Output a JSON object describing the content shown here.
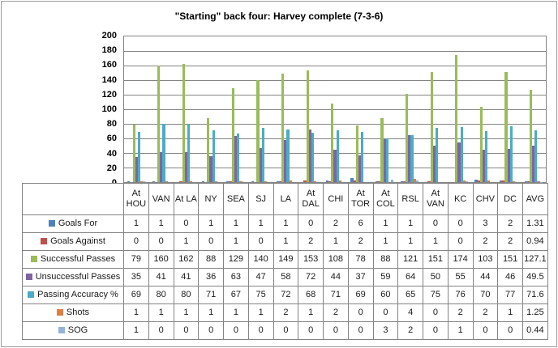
{
  "chart_data": {
    "type": "bar",
    "title": "\"Starting\" back four: Harvey complete (7-3-6)",
    "xlabel": "",
    "ylabel": "",
    "ylim": [
      0,
      200
    ],
    "ytick_step": 20,
    "yticks": [
      "200",
      "180",
      "160",
      "140",
      "120",
      "100",
      "80",
      "60",
      "40",
      "20",
      "0"
    ],
    "grid": true,
    "legend_position": "data-table-left-column",
    "categories": [
      "At HOU",
      "VAN",
      "At LA",
      "NY",
      "SEA",
      "SJ",
      "LA",
      "At DAL",
      "CHI",
      "At TOR",
      "At COL",
      "RSL",
      "At VAN",
      "KC",
      "CHV",
      "DC",
      "AVG"
    ],
    "series": [
      {
        "name": "Goals For",
        "color": "#4F81BD",
        "values": [
          1,
          1,
          0,
          1,
          1,
          1,
          1,
          0,
          2,
          6,
          1,
          1,
          0,
          0,
          3,
          2,
          1.31
        ]
      },
      {
        "name": "Goals Against",
        "color": "#C0504D",
        "values": [
          0,
          0,
          1,
          0,
          1,
          0,
          1,
          2,
          1,
          2,
          1,
          1,
          1,
          0,
          2,
          2,
          0.94
        ]
      },
      {
        "name": "Successful Passes",
        "color": "#9BBB59",
        "values": [
          79,
          160,
          162,
          88,
          129,
          140,
          149,
          153,
          108,
          78,
          88,
          121,
          151,
          174,
          103,
          151,
          127.1
        ]
      },
      {
        "name": "Unsuccessful Passes",
        "color": "#8064A2",
        "values": [
          35,
          41,
          41,
          36,
          63,
          47,
          58,
          72,
          44,
          37,
          59,
          64,
          50,
          55,
          44,
          46,
          49.5
        ]
      },
      {
        "name": "Passing Accuracy %",
        "color": "#4BACC6",
        "values": [
          69,
          80,
          80,
          71,
          67,
          75,
          72,
          68,
          71,
          69,
          60,
          65,
          75,
          76,
          70,
          77,
          71.6
        ]
      },
      {
        "name": "Shots",
        "color": "#DD8042",
        "values": [
          1,
          1,
          1,
          1,
          1,
          1,
          2,
          1,
          2,
          0,
          0,
          4,
          0,
          2,
          2,
          1,
          1.25
        ]
      },
      {
        "name": "SOG",
        "color": "#95B3D7",
        "values": [
          1,
          0,
          0,
          0,
          0,
          0,
          0,
          0,
          0,
          0,
          3,
          2,
          0,
          1,
          0,
          0,
          0.44
        ]
      }
    ],
    "colors": {
      "gridline": "#848484",
      "plot_border": "#848484",
      "table_border": "#848484",
      "frame_border": "#9D9D9D",
      "text": "#000000",
      "background": "#FFFFFF"
    }
  }
}
